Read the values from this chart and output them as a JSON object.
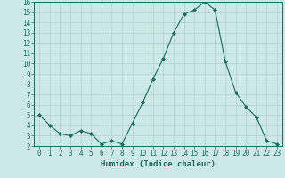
{
  "x": [
    0,
    1,
    2,
    3,
    4,
    5,
    6,
    7,
    8,
    9,
    10,
    11,
    12,
    13,
    14,
    15,
    16,
    17,
    18,
    19,
    20,
    21,
    22,
    23
  ],
  "y": [
    5.0,
    4.0,
    3.2,
    3.0,
    3.5,
    3.2,
    2.2,
    2.5,
    2.2,
    4.2,
    6.2,
    8.5,
    10.5,
    13.0,
    14.8,
    15.2,
    16.0,
    15.2,
    10.2,
    7.2,
    5.8,
    4.8,
    2.5,
    2.2
  ],
  "line_color": "#1a6b5a",
  "marker": "D",
  "marker_size": 2.0,
  "bg_color": "#cce8e8",
  "grid_major_color": "#b0c8c8",
  "grid_minor_color": "#c0d8d8",
  "xlabel": "Humidex (Indice chaleur)",
  "xlim": [
    -0.5,
    23.5
  ],
  "ylim": [
    2,
    16
  ],
  "yticks": [
    2,
    3,
    4,
    5,
    6,
    7,
    8,
    9,
    10,
    11,
    12,
    13,
    14,
    15,
    16
  ],
  "xticks": [
    0,
    1,
    2,
    3,
    4,
    5,
    6,
    7,
    8,
    9,
    10,
    11,
    12,
    13,
    14,
    15,
    16,
    17,
    18,
    19,
    20,
    21,
    22,
    23
  ],
  "tick_fontsize": 5.5,
  "label_fontsize": 6.5,
  "label_fontweight": "bold"
}
